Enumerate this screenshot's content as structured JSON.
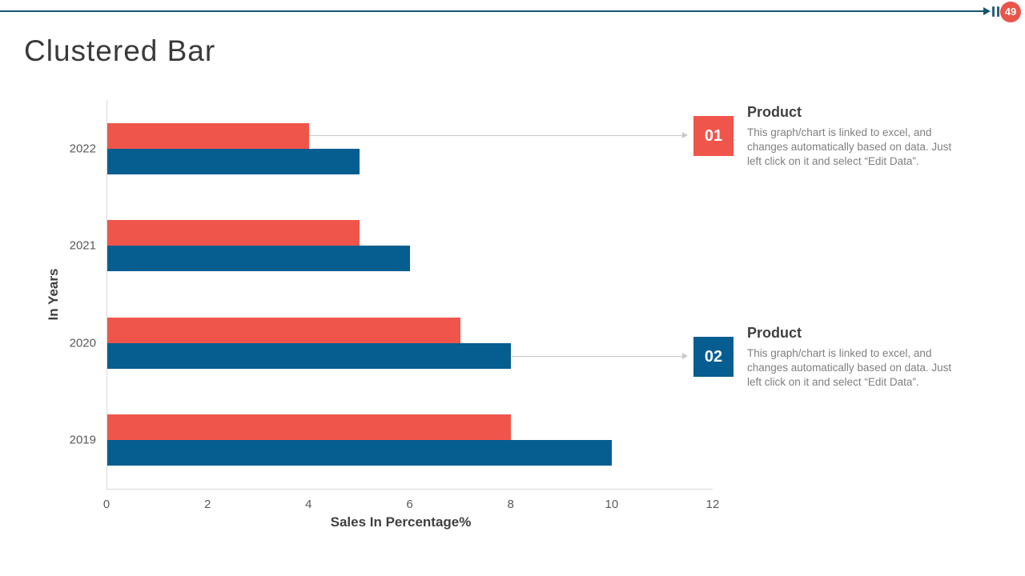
{
  "slide": {
    "title": "Clustered Bar",
    "page_number": "49"
  },
  "icons": [
    "arrow-right-icon",
    "pause-icon",
    "connector-arrow-icon"
  ],
  "colors": {
    "accent_teal": "#14576b",
    "series1_red": "#f0554b",
    "series2_blue": "#065d90",
    "page_badge_red": "#e85549",
    "connector_gray": "#c9c9c9",
    "axis_line_gray": "#d9d9d9",
    "heading_gray": "#404040",
    "tick_gray": "#595959",
    "body_gray": "#7f7f7f"
  },
  "chart_data": {
    "type": "bar",
    "orientation": "horizontal",
    "title": "Clustered Bar",
    "categories": [
      "2022",
      "2021",
      "2020",
      "2019"
    ],
    "series": [
      {
        "name": "Product 01",
        "color": "#f0554b",
        "values": [
          4,
          5,
          7,
          8
        ]
      },
      {
        "name": "Product 02",
        "color": "#065d90",
        "values": [
          5,
          6,
          8,
          10
        ]
      }
    ],
    "xlabel": "Sales In Percentage%",
    "ylabel": "In Years",
    "xlim": [
      0,
      12
    ],
    "xticks": [
      "0",
      "2",
      "4",
      "6",
      "8",
      "10",
      "12"
    ],
    "grid": false,
    "legend": "none"
  },
  "callouts": [
    {
      "number": "01",
      "title": "Product",
      "color": "#f0554b",
      "body": "This graph/chart is linked to excel, and\nchanges automatically based on data. Just\nleft click on it and select “Edit Data”."
    },
    {
      "number": "02",
      "title": "Product",
      "color": "#065d90",
      "body": "This graph/chart is linked to excel, and\nchanges automatically based on data. Just\nleft click on it and select “Edit Data”."
    }
  ]
}
